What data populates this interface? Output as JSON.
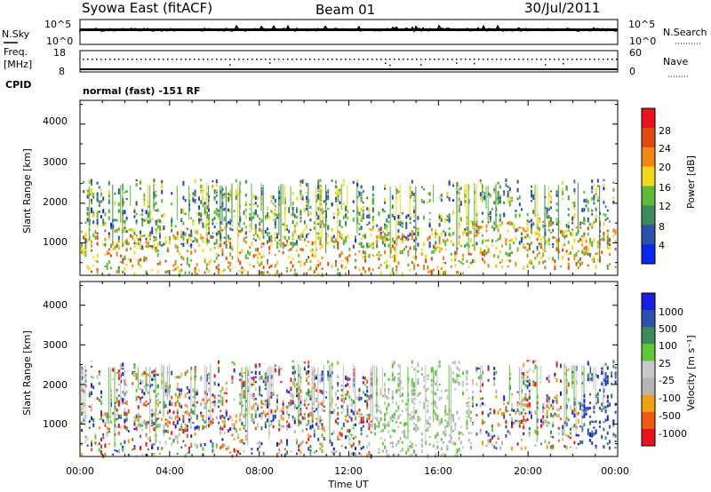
{
  "header": {
    "station": "Syowa East (fitACF)",
    "beam": "Beam 01",
    "date": "30/Jul/2011"
  },
  "noise_panel": {
    "left_label": "N.Sky",
    "right_label": "N.Search",
    "left_ticks": [
      "10^5",
      "10^0"
    ],
    "right_ticks": [
      "10^5",
      "10^0"
    ]
  },
  "freq_panel": {
    "left_label_line1": "Freq.",
    "left_label_line2": "[MHz]",
    "right_label": "Nave",
    "left_ticks": [
      "18",
      "8"
    ],
    "right_ticks": [
      "60",
      "0"
    ]
  },
  "cpid": {
    "label": "CPID",
    "value": "normal (fast) -151 RF"
  },
  "colors": {
    "power_scale": [
      "#0a28f0",
      "#2d4fb0",
      "#3d8a5a",
      "#5fba3a",
      "#f0d81e",
      "#f08a14",
      "#e04a10",
      "#e8141e"
    ],
    "velocity_scale": [
      "#e8141e",
      "#f05a14",
      "#f0a014",
      "#b4b4b4",
      "#c8c8c8",
      "#5fc83a",
      "#3d8a5a",
      "#2d4fb0",
      "#1a1ee0"
    ]
  },
  "chart_data": [
    {
      "type": "heatmap",
      "panel": "power",
      "ylabel": "Slant Range [km]",
      "ylim": [
        180,
        4600
      ],
      "y_ticks": [
        "4000",
        "3000",
        "2000",
        "1000"
      ],
      "colorbar_label": "Power [dB]",
      "colorbar_range": [
        0,
        32
      ],
      "colorbar_ticks": [
        "28",
        "24",
        "20",
        "16",
        "12",
        "8",
        "4"
      ],
      "x_ticks": [
        "00:00",
        "04:00",
        "08:00",
        "12:00",
        "16:00",
        "20:00",
        "00:00"
      ],
      "xlim": [
        0,
        24
      ]
    },
    {
      "type": "heatmap",
      "panel": "velocity",
      "ylabel": "Slant Range [km]",
      "ylim": [
        180,
        4600
      ],
      "y_ticks": [
        "4000",
        "3000",
        "2000",
        "1000"
      ],
      "colorbar_label": "Velocity [m s⁻¹]",
      "colorbar_ticks": [
        "1000",
        "500",
        "100",
        "25",
        "-25",
        "-100",
        "-500",
        "-1000"
      ],
      "xlabel": "Time UT",
      "x_ticks": [
        "00:00",
        "04:00",
        "08:00",
        "12:00",
        "16:00",
        "20:00",
        "00:00"
      ],
      "xlim": [
        0,
        24
      ]
    }
  ]
}
